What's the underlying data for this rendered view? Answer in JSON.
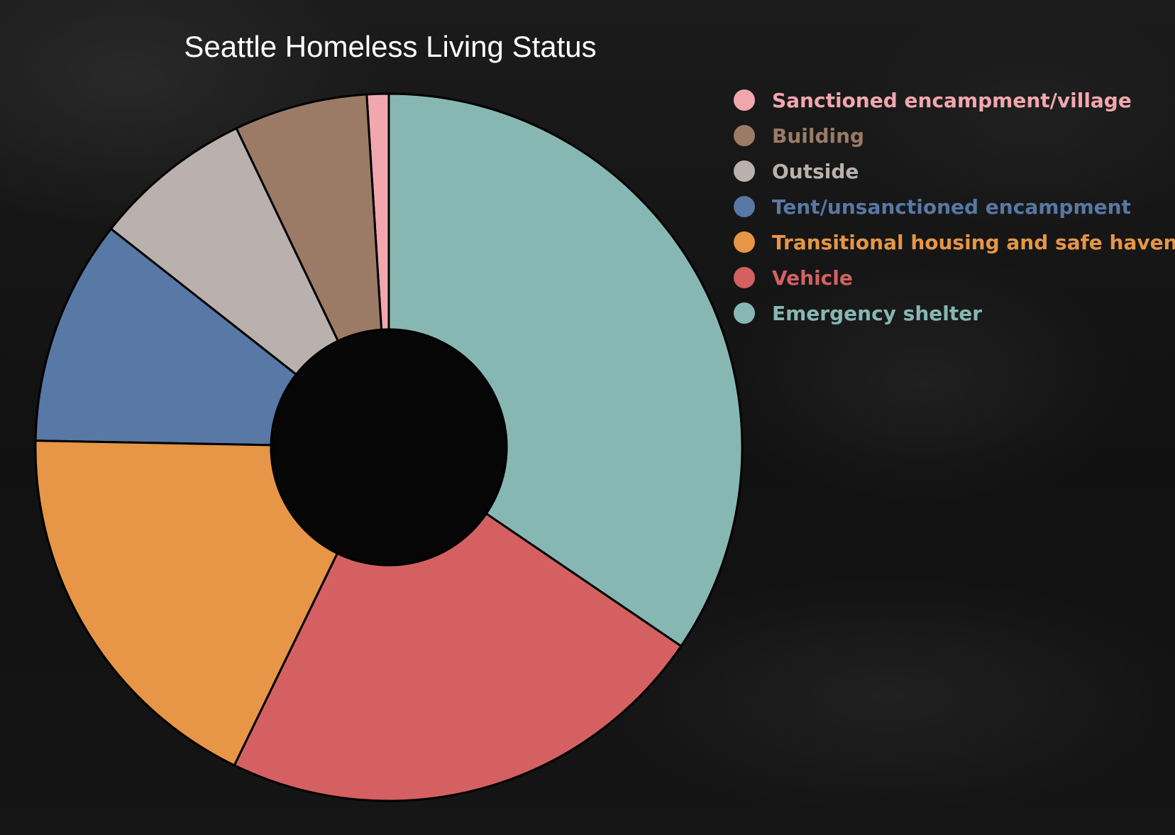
{
  "chart_data": {
    "type": "pie",
    "title": "Seattle Homeless Living Status",
    "legend": "top-right",
    "slices": [
      {
        "label": "Sanctioned encampment/village",
        "value": 1.0,
        "color": "#F2A7AE"
      },
      {
        "label": "Building",
        "value": 6.1,
        "color": "#9B7B66"
      },
      {
        "label": "Outside",
        "value": 7.3,
        "color": "#BAB1AE"
      },
      {
        "label": "Tent/unsanctioned encampment",
        "value": 10.3,
        "color": "#5878A5"
      },
      {
        "label": "Transitional housing and safe haven",
        "value": 18.1,
        "color": "#E69646"
      },
      {
        "label": "Vehicle",
        "value": 22.7,
        "color": "#D46062"
      },
      {
        "label": "Emergency shelter",
        "value": 34.5,
        "color": "#87B7B3"
      }
    ]
  }
}
